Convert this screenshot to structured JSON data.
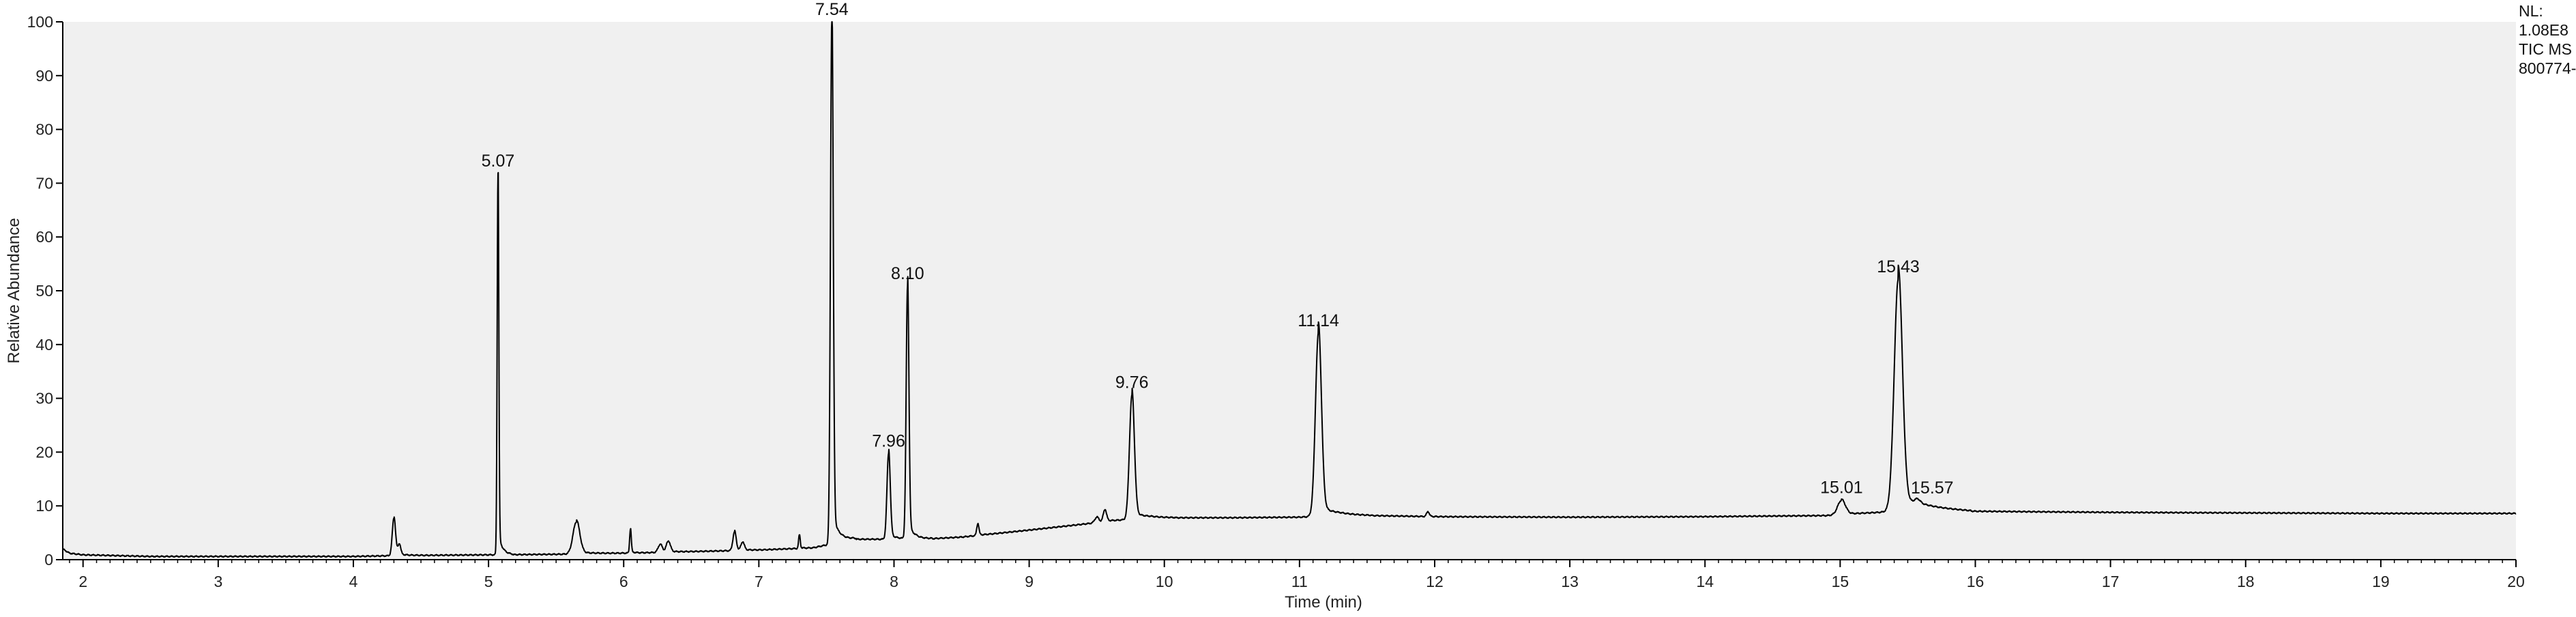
{
  "chart_data": {
    "type": "line",
    "xlabel": "Time (min)",
    "ylabel": "Relative Abundance",
    "xlim": [
      1.85,
      20
    ],
    "ylim": [
      0,
      100
    ],
    "x_ticks": [
      2,
      3,
      4,
      5,
      6,
      7,
      8,
      9,
      10,
      11,
      12,
      13,
      14,
      15,
      16,
      17,
      18,
      19,
      20
    ],
    "y_ticks": [
      0,
      10,
      20,
      30,
      40,
      50,
      60,
      70,
      80,
      90,
      100
    ],
    "grid": false,
    "info_lines": [
      "NL:",
      "1.08E8",
      "TIC  MS",
      "800774-"
    ],
    "colors": {
      "plot_background": "#f0f0f0",
      "trace": "#000000",
      "axis": "#000000"
    },
    "baseline": [
      [
        1.85,
        2.0
      ],
      [
        1.9,
        1.2
      ],
      [
        2.0,
        0.9
      ],
      [
        2.5,
        0.6
      ],
      [
        3.0,
        0.6
      ],
      [
        3.5,
        0.6
      ],
      [
        4.0,
        0.6
      ],
      [
        4.2,
        0.7
      ],
      [
        4.5,
        0.8
      ],
      [
        5.0,
        0.9
      ],
      [
        5.5,
        1.0
      ],
      [
        6.0,
        1.2
      ],
      [
        6.5,
        1.5
      ],
      [
        7.0,
        1.8
      ],
      [
        7.4,
        2.2
      ],
      [
        7.7,
        3.8
      ],
      [
        8.2,
        3.8
      ],
      [
        8.5,
        4.2
      ],
      [
        9.0,
        5.5
      ],
      [
        9.4,
        6.6
      ],
      [
        9.6,
        7.2
      ],
      [
        9.9,
        7.8
      ],
      [
        10.5,
        7.8
      ],
      [
        11.0,
        7.9
      ],
      [
        11.3,
        8.3
      ],
      [
        12.0,
        8.0
      ],
      [
        13.0,
        7.9
      ],
      [
        14.0,
        8.0
      ],
      [
        14.9,
        8.2
      ],
      [
        15.3,
        8.8
      ],
      [
        15.6,
        9.6
      ],
      [
        16.0,
        9.0
      ],
      [
        17.0,
        8.8
      ],
      [
        18.0,
        8.7
      ],
      [
        19.0,
        8.6
      ],
      [
        20.0,
        8.6
      ]
    ],
    "peaks": [
      {
        "rt": 4.3,
        "height": 7.0,
        "width": 0.012
      },
      {
        "rt": 4.34,
        "height": 2.0,
        "width": 0.01
      },
      {
        "rt": 5.07,
        "height": 71.0,
        "width": 0.006,
        "label": "5.07"
      },
      {
        "rt": 5.65,
        "height": 6.0,
        "width": 0.025
      },
      {
        "rt": 6.05,
        "height": 4.5,
        "width": 0.006
      },
      {
        "rt": 6.27,
        "height": 1.5,
        "width": 0.015
      },
      {
        "rt": 6.33,
        "height": 2.0,
        "width": 0.015
      },
      {
        "rt": 6.82,
        "height": 3.5,
        "width": 0.012
      },
      {
        "rt": 6.88,
        "height": 1.5,
        "width": 0.012
      },
      {
        "rt": 7.3,
        "height": 2.5,
        "width": 0.006
      },
      {
        "rt": 7.54,
        "height": 98.0,
        "width": 0.01,
        "label": "7.54"
      },
      {
        "rt": 7.96,
        "height": 16.0,
        "width": 0.012,
        "label": "7.96"
      },
      {
        "rt": 8.1,
        "height": 47.0,
        "width": 0.01,
        "label": "8.10"
      },
      {
        "rt": 8.62,
        "height": 2.2,
        "width": 0.008
      },
      {
        "rt": 9.5,
        "height": 1.0,
        "width": 0.015
      },
      {
        "rt": 9.56,
        "height": 2.2,
        "width": 0.012
      },
      {
        "rt": 9.76,
        "height": 23.0,
        "width": 0.018,
        "label": "9.76"
      },
      {
        "rt": 11.14,
        "height": 34.0,
        "width": 0.022,
        "label": "11.14"
      },
      {
        "rt": 11.95,
        "height": 0.9,
        "width": 0.01
      },
      {
        "rt": 15.01,
        "height": 2.7,
        "width": 0.028,
        "label": "15.01"
      },
      {
        "rt": 15.43,
        "height": 43.0,
        "width": 0.03,
        "label": "15.43"
      },
      {
        "rt": 15.57,
        "height": 0.8,
        "width": 0.02,
        "label": "15.57"
      }
    ]
  }
}
